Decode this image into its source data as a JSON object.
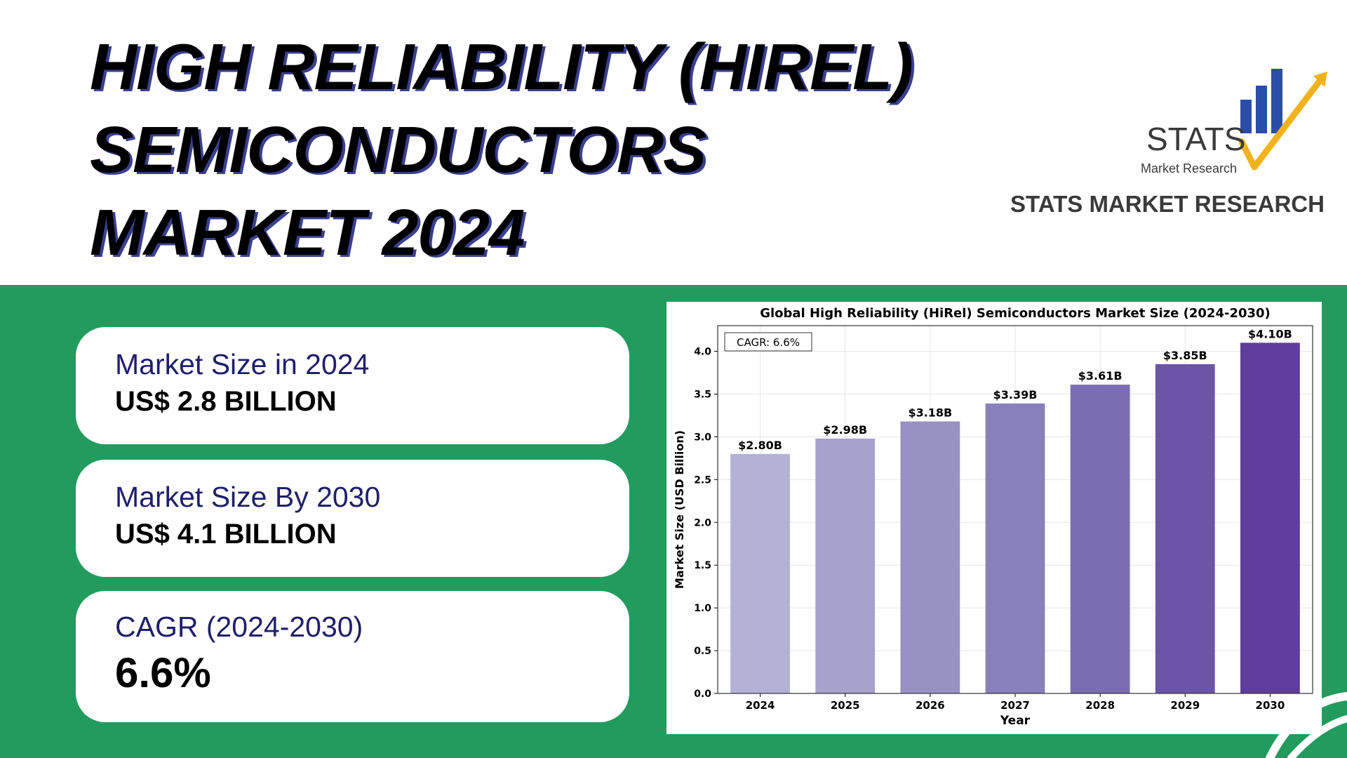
{
  "header": {
    "title_lines": [
      "HIGH RELIABILITY (HIREL)",
      "SEMICONDUCTORS",
      "MARKET 2024"
    ],
    "logo_text": "STATS",
    "logo_subtext": "Market Research",
    "brand_name": "STATS MARKET RESEARCH"
  },
  "stats": [
    {
      "label": "Market Size in 2024",
      "value": "US$ 2.8 BILLION"
    },
    {
      "label": "Market Size By 2030",
      "value": "US$ 4.1 BILLION"
    },
    {
      "label": "CAGR (2024-2030)",
      "value": "6.6%"
    }
  ],
  "colors": {
    "green": "#229b5e",
    "accent_blue": "#2a4ea8",
    "accent_yellow": "#f2b21b",
    "title_shadow": "#3b3f8f"
  },
  "chart_data": {
    "type": "bar",
    "title": "Global High Reliability (HiRel) Semiconductors Market Size (2024-2030)",
    "xlabel": "Year",
    "ylabel": "Market Size (USD Billion)",
    "categories": [
      "2024",
      "2025",
      "2026",
      "2027",
      "2028",
      "2029",
      "2030"
    ],
    "values": [
      2.8,
      2.98,
      3.18,
      3.39,
      3.61,
      3.85,
      4.1
    ],
    "value_labels": [
      "$2.80B",
      "$2.98B",
      "$3.18B",
      "$3.39B",
      "$3.61B",
      "$3.85B",
      "$4.10B"
    ],
    "bar_colors": [
      "#b3b1d6",
      "#a6a2cc",
      "#9891c3",
      "#8880bb",
      "#7a6db2",
      "#6c55a8",
      "#5f3d9c"
    ],
    "yticks": [
      "0.0",
      "0.5",
      "1.0",
      "1.5",
      "2.0",
      "2.5",
      "3.0",
      "3.5",
      "4.0"
    ],
    "ylim": [
      0,
      4.3
    ],
    "annotation": "CAGR: 6.6%",
    "grid": true
  }
}
